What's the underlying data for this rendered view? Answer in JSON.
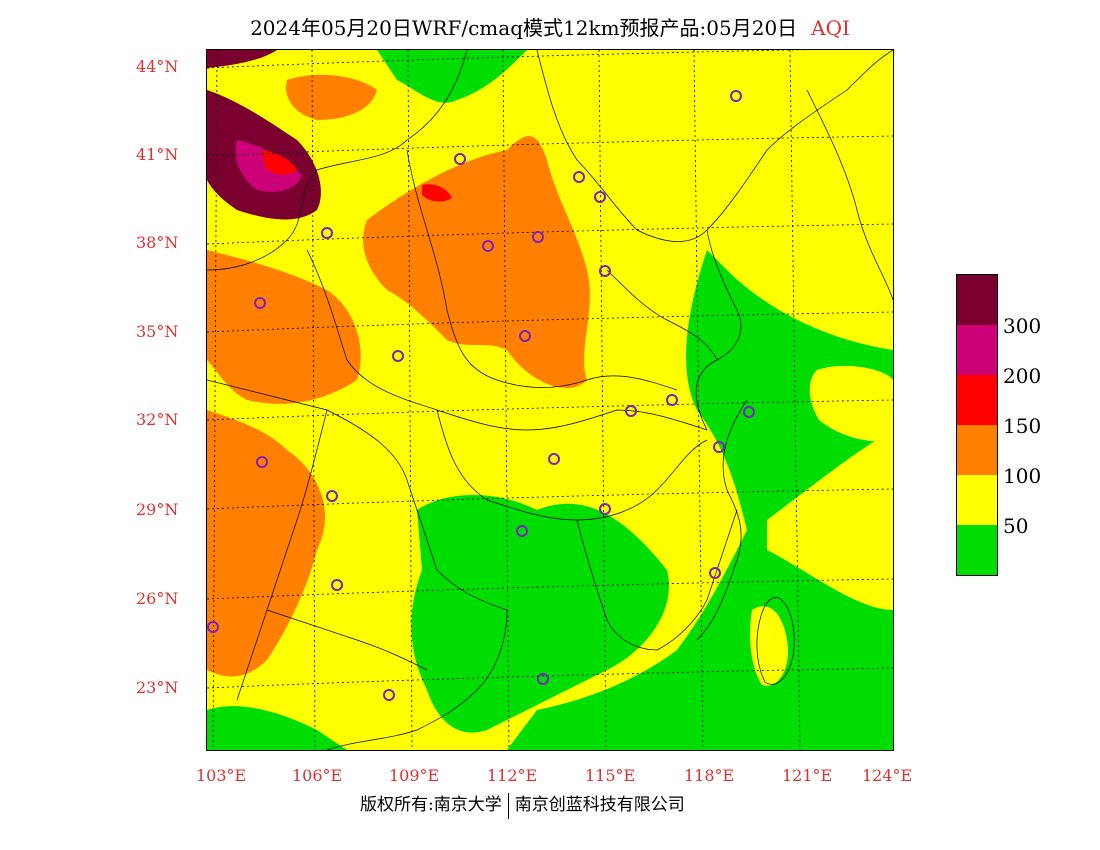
{
  "title": {
    "text": "2024年05月20日WRF/cmaq模式12km预报产品:05月20日",
    "variable": "AQI"
  },
  "axes": {
    "lat_labels": [
      "44°N",
      "41°N",
      "38°N",
      "35°N",
      "32°N",
      "29°N",
      "26°N",
      "23°N"
    ],
    "lon_labels": [
      "103°E",
      "106°E",
      "109°E",
      "112°E",
      "115°E",
      "118°E",
      "121°E",
      "124°E"
    ]
  },
  "legend": {
    "colors": [
      "#7a0030",
      "#cc0077",
      "#ff0000",
      "#ff8000",
      "#ffff00",
      "#00dd00"
    ],
    "labels": [
      "300",
      "200",
      "150",
      "100",
      "50"
    ]
  },
  "footer": {
    "left": "版权所有:南京大学",
    "right": "南京创蓝科技有限公司"
  },
  "colors": {
    "green": "#00dd00",
    "yellow": "#ffff00",
    "orange": "#ff8000",
    "red": "#ff0000",
    "magenta": "#cc0077",
    "maroon": "#7a0030",
    "label": "#e03030",
    "city_marker": "#8020c0"
  }
}
